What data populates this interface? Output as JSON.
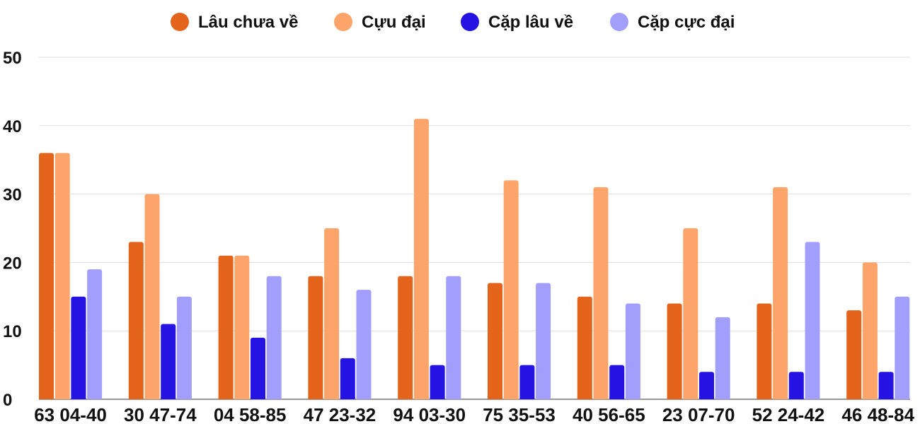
{
  "chart_data": {
    "type": "bar",
    "title": "",
    "xlabel": "",
    "ylabel": "",
    "ylim": [
      0,
      50
    ],
    "yticks": [
      0,
      10,
      20,
      30,
      40,
      50
    ],
    "grid": true,
    "legend_position": "top",
    "categories": [
      "63 04-40",
      "30 47-74",
      "04 58-85",
      "47 23-32",
      "94 03-30",
      "75 35-53",
      "40 56-65",
      "23 07-70",
      "52 24-42",
      "46 48-84"
    ],
    "series": [
      {
        "name": "Lâu chưa về",
        "color": "#e3641a",
        "values": [
          36,
          23,
          21,
          18,
          18,
          17,
          15,
          14,
          14,
          13
        ]
      },
      {
        "name": "Cựu đại",
        "color": "#fda46a",
        "values": [
          36,
          30,
          21,
          25,
          41,
          32,
          31,
          25,
          31,
          20
        ]
      },
      {
        "name": "Cặp lâu về",
        "color": "#2513e4",
        "values": [
          15,
          11,
          9,
          6,
          5,
          5,
          5,
          4,
          4,
          4
        ]
      },
      {
        "name": "Cặp cực đại",
        "color": "#a29ffc",
        "values": [
          19,
          15,
          18,
          16,
          18,
          17,
          14,
          12,
          23,
          15
        ]
      }
    ]
  }
}
